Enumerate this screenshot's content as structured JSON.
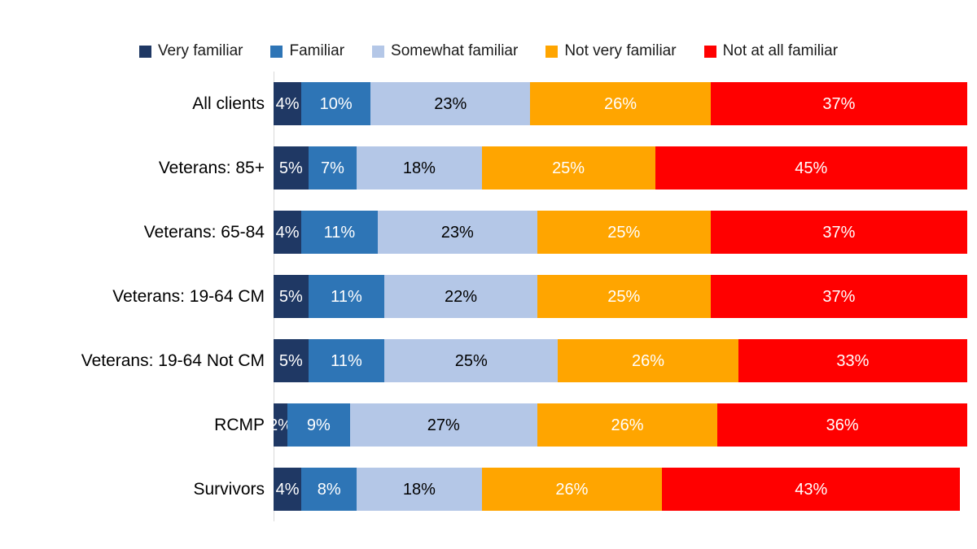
{
  "chart_data": {
    "type": "bar",
    "orientation": "horizontal-stacked",
    "title": "",
    "xlabel": "",
    "ylabel": "",
    "xlim": [
      0,
      100
    ],
    "grid": false,
    "legend_position": "top",
    "value_suffix": "%",
    "axis_line_color": "#d9d9d9",
    "background_color": "#ffffff",
    "categories": [
      "All clients",
      "Veterans: 85+",
      "Veterans: 65-84",
      "Veterans: 19-64 CM",
      "Veterans: 19-64 Not CM",
      "RCMP",
      "Survivors"
    ],
    "series": [
      {
        "name": "Very familiar",
        "color": "#1f3864",
        "label_color": "#ffffff",
        "values": [
          4,
          5,
          4,
          5,
          5,
          2,
          4
        ]
      },
      {
        "name": "Familiar",
        "color": "#2e75b6",
        "label_color": "#ffffff",
        "values": [
          10,
          7,
          11,
          11,
          11,
          9,
          8
        ]
      },
      {
        "name": "Somewhat familiar",
        "color": "#b4c7e7",
        "label_color": "#000000",
        "values": [
          23,
          18,
          23,
          22,
          25,
          27,
          18
        ]
      },
      {
        "name": "Not very familiar",
        "color": "#ffa500",
        "label_color": "#ffffff",
        "values": [
          26,
          25,
          25,
          25,
          26,
          26,
          26
        ]
      },
      {
        "name": "Not at all familiar",
        "color": "#ff0000",
        "label_color": "#ffffff",
        "values": [
          37,
          45,
          37,
          37,
          33,
          36,
          43
        ]
      }
    ]
  }
}
